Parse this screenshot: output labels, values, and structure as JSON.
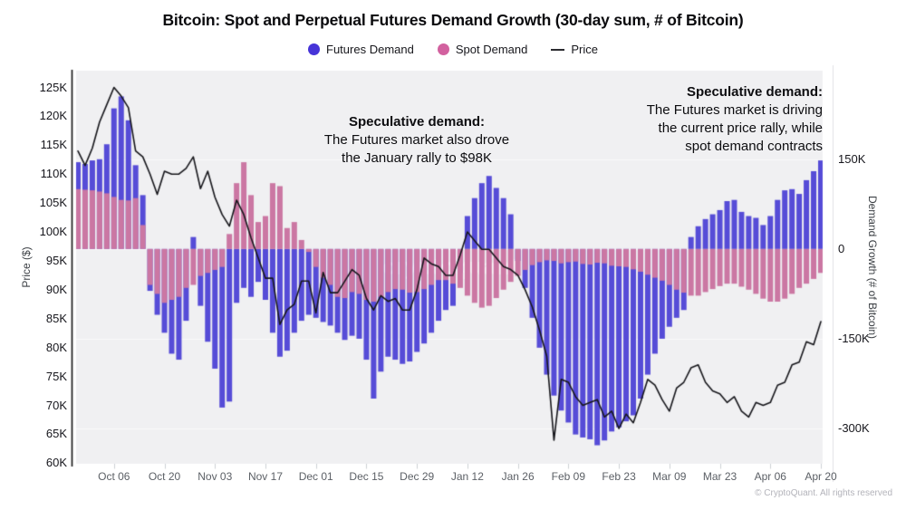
{
  "title": "Bitcoin: Spot and Perpetual Futures Demand Growth (30-day sum, # of Bitcoin)",
  "legend": {
    "items": [
      {
        "label": "Futures Demand",
        "color": "#4634d8"
      },
      {
        "label": "Spot Demand",
        "color": "#d2619f"
      },
      {
        "label": "Price",
        "color": "#2b2b30"
      }
    ]
  },
  "annotations": {
    "left": {
      "heading": "Speculative demand:",
      "lines": [
        "The Futures market also drove",
        "the January rally to $98K"
      ]
    },
    "right": {
      "heading": "Speculative demand:",
      "lines": [
        "The Futures market is driving",
        "the current price rally, while",
        "spot demand contracts"
      ]
    }
  },
  "footer": "© CryptoQuant. All rights reserved",
  "watermark": "cryptoquant",
  "colors": {
    "futures_bar": "#564cd7",
    "spot_bar": "#cb77a3",
    "price_line": "#17171c",
    "plot_bg": "#f0f0f2",
    "grid": "#fafafb",
    "axis_line": "#141414",
    "separator": "#e0e0e4",
    "x_tick_mark": "#cdd0d4"
  },
  "chart_data": {
    "type": "combo",
    "title": "Bitcoin: Spot and Perpetual Futures Demand Growth (30-day sum, # of Bitcoin)",
    "x": {
      "start": "Sep 26",
      "end": "Apr 20",
      "interval_days": 2,
      "n_points": 104,
      "total_days": 207,
      "tick_labels": [
        "Oct 06",
        "Oct 20",
        "Nov 03",
        "Nov 17",
        "Dec 01",
        "Dec 15",
        "Dec 29",
        "Jan 12",
        "Jan 26",
        "Feb 09",
        "Feb 23",
        "Mar 09",
        "Mar 23",
        "Apr 06",
        "Apr 20"
      ],
      "tick_day_index": [
        10,
        24,
        38,
        52,
        66,
        80,
        94,
        108,
        122,
        136,
        150,
        164,
        178,
        192,
        206
      ]
    },
    "axis_left": {
      "label": "Price ($)",
      "unit": "thousand USD",
      "tick_values": [
        125,
        120,
        115,
        110,
        105,
        100,
        95,
        90,
        85,
        80,
        75,
        70,
        65,
        60
      ],
      "tick_labels": [
        "125K",
        "120K",
        "115K",
        "110K",
        "105K",
        "100K",
        "95K",
        "90K",
        "85K",
        "80K",
        "75K",
        "70K",
        "65K",
        "60K"
      ],
      "range": [
        59.9,
        127.9
      ]
    },
    "axis_right": {
      "label": "Demand Growth (# of Bitcoin)",
      "unit": "thousand BTC",
      "tick_values": [
        150,
        0,
        -150,
        -300
      ],
      "tick_labels": [
        "150K",
        "0",
        "-150K",
        "-300K"
      ],
      "range": [
        -359,
        298
      ]
    },
    "series": [
      {
        "name": "Futures Demand",
        "type": "bar",
        "axis": "right",
        "values": [
          145,
          142,
          148,
          150,
          175,
          235,
          255,
          215,
          140,
          90,
          -70,
          -110,
          -140,
          -175,
          -185,
          -120,
          20,
          -95,
          -155,
          -200,
          -265,
          -255,
          -90,
          -65,
          -80,
          -55,
          -85,
          -140,
          -180,
          -170,
          -140,
          -120,
          -110,
          -115,
          -122,
          -128,
          -140,
          -152,
          -145,
          -150,
          -185,
          -250,
          -205,
          -180,
          -185,
          -192,
          -188,
          -172,
          -158,
          -140,
          -120,
          -102,
          -95,
          -40,
          55,
          85,
          110,
          122,
          102,
          85,
          58,
          -20,
          -65,
          -115,
          -165,
          -210,
          -245,
          -270,
          -290,
          -310,
          -315,
          -318,
          -328,
          -320,
          -305,
          -298,
          -288,
          -278,
          -250,
          -210,
          -175,
          -150,
          -130,
          -115,
          -102,
          20,
          38,
          50,
          58,
          65,
          80,
          82,
          62,
          55,
          52,
          40,
          55,
          82,
          98,
          100,
          92,
          115,
          130,
          148
        ]
      },
      {
        "name": "Spot Demand",
        "type": "bar",
        "axis": "right",
        "values": [
          100,
          99,
          98,
          96,
          93,
          87,
          82,
          81,
          85,
          40,
          -60,
          -75,
          -90,
          -85,
          -80,
          -65,
          -60,
          -45,
          -40,
          -35,
          -30,
          25,
          110,
          145,
          90,
          45,
          55,
          110,
          105,
          35,
          45,
          15,
          -5,
          -30,
          -48,
          -60,
          -80,
          -82,
          -72,
          -75,
          -85,
          -88,
          -80,
          -72,
          -67,
          -68,
          -73,
          -72,
          -67,
          -60,
          -52,
          -52,
          -58,
          -65,
          -78,
          -90,
          -98,
          -95,
          -82,
          -68,
          -55,
          -45,
          -35,
          -27,
          -22,
          -19,
          -20,
          -24,
          -22,
          -21,
          -25,
          -26,
          -23,
          -24,
          -28,
          -29,
          -30,
          -34,
          -38,
          -43,
          -48,
          -53,
          -60,
          -68,
          -73,
          -78,
          -78,
          -72,
          -67,
          -62,
          -58,
          -58,
          -63,
          -68,
          -75,
          -83,
          -88,
          -88,
          -83,
          -75,
          -65,
          -58,
          -50,
          -40
        ]
      },
      {
        "name": "Price",
        "type": "line",
        "axis": "left",
        "values": [
          114,
          111.5,
          114.5,
          119,
          122,
          125,
          123.5,
          121.5,
          114,
          113,
          110,
          106.5,
          110.5,
          110,
          110,
          111,
          113,
          107.5,
          110.5,
          106,
          103,
          101,
          105.5,
          103,
          99,
          95.5,
          92,
          92,
          84,
          86.5,
          87.5,
          91.5,
          91.5,
          86,
          93,
          89.5,
          89.5,
          91.5,
          93.5,
          92.5,
          88.5,
          86.5,
          89,
          88,
          88.5,
          86.5,
          86.5,
          90,
          95.5,
          94.5,
          94,
          92.5,
          92.5,
          96,
          100,
          98.5,
          97,
          97,
          95.5,
          94,
          93.5,
          92.5,
          90,
          87,
          83,
          78.5,
          64,
          74.5,
          74,
          71.5,
          70,
          70.5,
          71,
          68,
          69,
          66,
          68.5,
          67,
          70.5,
          74.5,
          73.5,
          71,
          69,
          73,
          74,
          76.5,
          77,
          74,
          72.5,
          72,
          70.5,
          71.5,
          69,
          68,
          70.5,
          70,
          70.5,
          73.5,
          74,
          77,
          77.5,
          81,
          80.5,
          84.5
        ]
      }
    ],
    "legend_position": "top",
    "grid": "subtle horizontal lines at right-axis ticks"
  }
}
